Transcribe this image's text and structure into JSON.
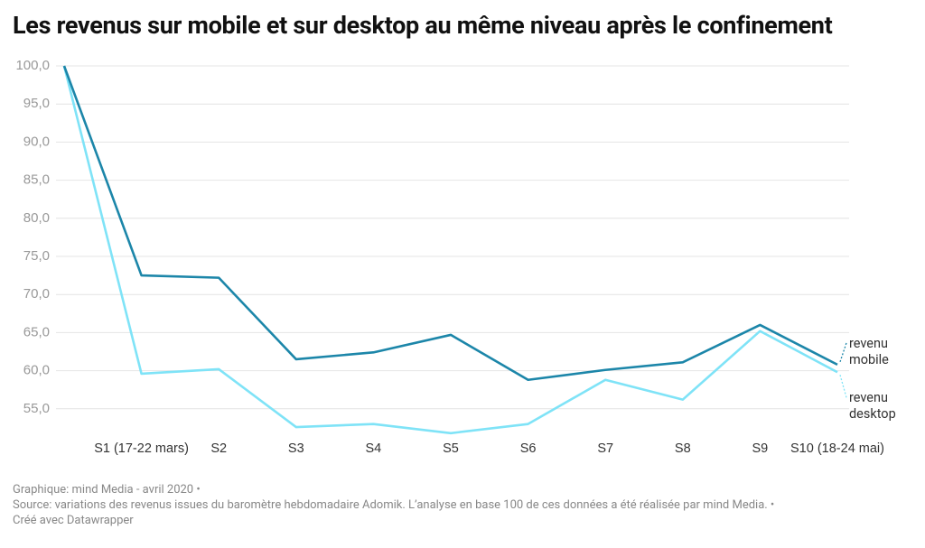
{
  "chart_data": {
    "type": "line",
    "title": "Les revenus sur mobile et sur desktop au même niveau après le confinement",
    "categories": [
      null,
      "S1 (17-22 mars)",
      "S2",
      "S3",
      "S4",
      "S5",
      "S6",
      "S7",
      "S8",
      "S9",
      "S10 (18-24 mai)"
    ],
    "series": [
      {
        "name": "revenu mobile",
        "color": "#1c86a9",
        "values": [
          100,
          72.5,
          72.2,
          61.5,
          62.4,
          64.7,
          58.8,
          60.1,
          61.1,
          66.0,
          60.8
        ]
      },
      {
        "name": "revenu desktop",
        "color": "#7fe3f7",
        "values": [
          100,
          59.6,
          60.2,
          52.6,
          53.0,
          51.8,
          53.0,
          58.8,
          56.2,
          65.2,
          59.8
        ]
      }
    ],
    "ylim": [
      51,
      100
    ],
    "yticks": [
      {
        "value": 55,
        "label": "55,0"
      },
      {
        "value": 60,
        "label": "60,0"
      },
      {
        "value": 65,
        "label": "65,0"
      },
      {
        "value": 70,
        "label": "70,0"
      },
      {
        "value": 75,
        "label": "75,0"
      },
      {
        "value": 80,
        "label": "80,0"
      },
      {
        "value": 85,
        "label": "85,0"
      },
      {
        "value": 90,
        "label": "90,0"
      },
      {
        "value": 95,
        "label": "95,0"
      },
      {
        "value": 100,
        "label": "100,0"
      }
    ],
    "grid": true,
    "footer": [
      "Graphique: mind Media - avril 2020 •",
      "Source: variations des revenus issues du baromètre hebdomadaire Adomik. L’analyse en base 100 de ces données a été réalisée par mind Media. •",
      "Créé avec Datawrapper"
    ]
  }
}
